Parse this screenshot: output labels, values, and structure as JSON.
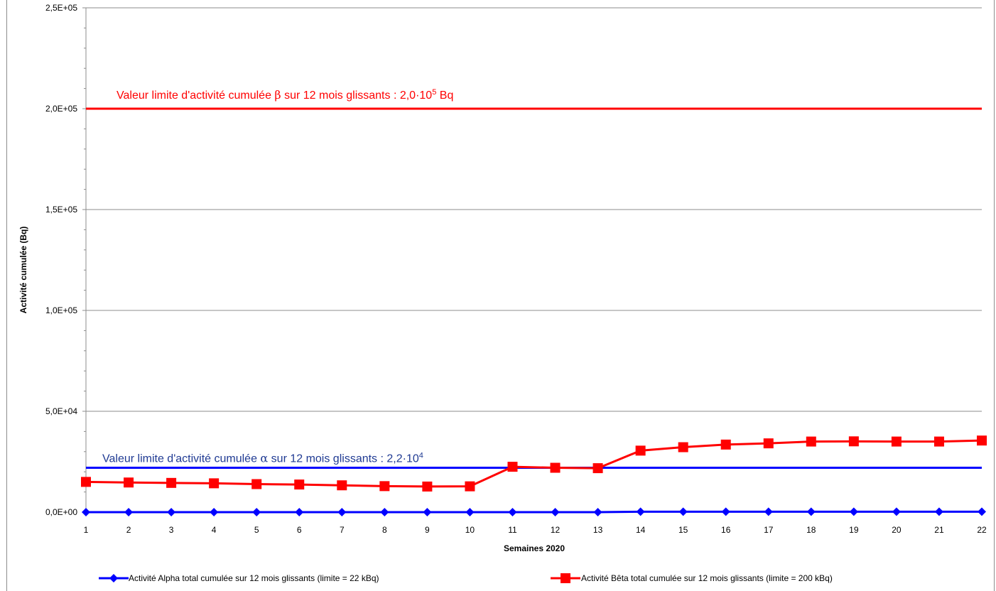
{
  "chart_data": {
    "type": "line",
    "title": "",
    "xlabel": "Semaines 2020",
    "ylabel": "Activité cumulée (Bq)",
    "categories": [
      "1",
      "2",
      "3",
      "4",
      "5",
      "6",
      "7",
      "8",
      "9",
      "10",
      "11",
      "12",
      "13",
      "14",
      "15",
      "16",
      "17",
      "18",
      "19",
      "20",
      "21",
      "22"
    ],
    "yticks": [
      "0,0E+00",
      "5,0E+04",
      "1,0E+05",
      "1,5E+05",
      "2,0E+05",
      "2,5E+05"
    ],
    "ylim": [
      0,
      250000
    ],
    "grid": true,
    "legend_position": "bottom",
    "series": [
      {
        "name": "Activité Alpha total cumulée sur 12 mois glissants (limite = 22 kBq)",
        "color": "#0000FF",
        "marker": "diamond",
        "values": [
          0,
          0,
          0,
          0,
          0,
          0,
          0,
          0,
          0,
          0,
          0,
          0,
          0,
          200,
          200,
          200,
          200,
          200,
          200,
          200,
          200,
          200
        ]
      },
      {
        "name": "Activité Bêta total cumulée sur 12 mois glissants (limite = 200 kBq)",
        "color": "#FF0000",
        "marker": "square",
        "values": [
          15000,
          14700,
          14500,
          14300,
          13900,
          13700,
          13300,
          12900,
          12700,
          12800,
          22500,
          22000,
          21800,
          30500,
          32200,
          33500,
          34100,
          35000,
          35100,
          35000,
          35000,
          35500
        ]
      }
    ],
    "reference_lines": [
      {
        "value": 200000,
        "color": "#FF0000",
        "label_prefix": "Valeur limite d'activité cumulée ",
        "label_symbol": "β",
        "label_middle": " sur 12 mois  glissants : 2,0·10",
        "label_sup": "5",
        "label_suffix": " Bq",
        "label_color": "#FF0000"
      },
      {
        "value": 22000,
        "color": "#0000FF",
        "label_prefix": "Valeur limite d'activité cumulée ",
        "label_symbol": "α",
        "label_middle": " sur 12 mois  glissants : 2,2·10",
        "label_sup": "4",
        "label_suffix": "",
        "label_color": "#1F3A93"
      }
    ]
  }
}
